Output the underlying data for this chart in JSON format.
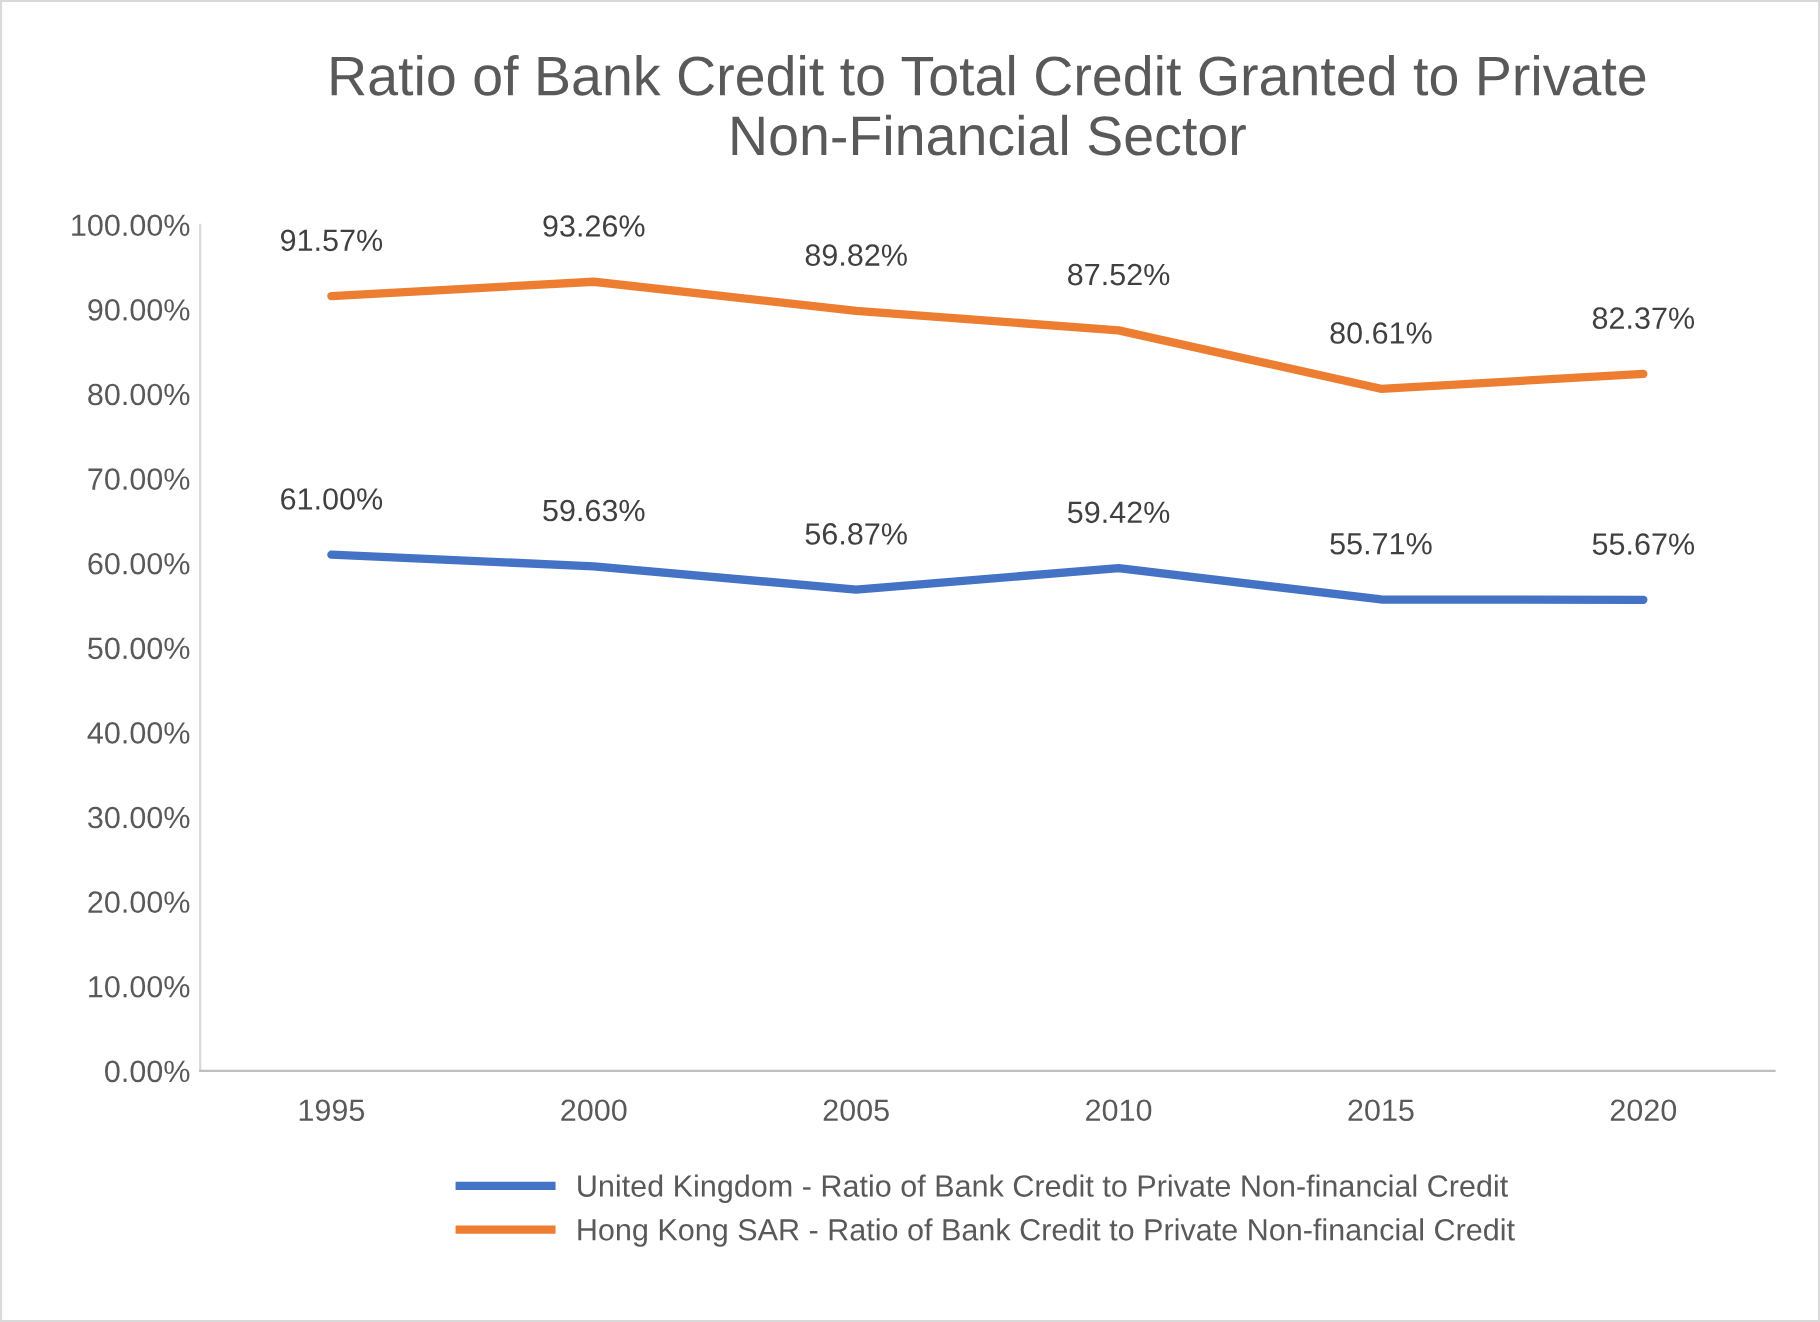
{
  "chart_data": {
    "type": "line",
    "title": "Ratio of Bank Credit to Total Credit Granted to Private Non-Financial Sector",
    "categories": [
      "1995",
      "2000",
      "2005",
      "2010",
      "2015",
      "2020"
    ],
    "series": [
      {
        "name": "United Kingdom - Ratio of Bank Credit to Private Non-financial Credit",
        "color": "#4472c4",
        "values": [
          61.0,
          59.63,
          56.87,
          59.42,
          55.71,
          55.67
        ],
        "value_labels": [
          "61.00%",
          "59.63%",
          "56.87%",
          "59.42%",
          "55.71%",
          "55.67%"
        ]
      },
      {
        "name": "Hong Kong SAR - Ratio of Bank Credit to Private Non-financial Credit",
        "color": "#ed7d31",
        "values": [
          91.57,
          93.26,
          89.82,
          87.52,
          80.61,
          82.37
        ],
        "value_labels": [
          "91.57%",
          "93.26%",
          "89.82%",
          "87.52%",
          "80.61%",
          "82.37%"
        ]
      }
    ],
    "ylim": [
      0,
      100
    ],
    "yticks": [
      {
        "value": 0,
        "label": "0.00%"
      },
      {
        "value": 10,
        "label": "10.00%"
      },
      {
        "value": 20,
        "label": "20.00%"
      },
      {
        "value": 30,
        "label": "30.00%"
      },
      {
        "value": 40,
        "label": "40.00%"
      },
      {
        "value": 50,
        "label": "50.00%"
      },
      {
        "value": 60,
        "label": "60.00%"
      },
      {
        "value": 70,
        "label": "70.00%"
      },
      {
        "value": 80,
        "label": "80.00%"
      },
      {
        "value": 90,
        "label": "90.00%"
      },
      {
        "value": 100,
        "label": "100.00%"
      }
    ],
    "grid": false,
    "legend": "bottom",
    "marker": "none",
    "line_style": "solid"
  }
}
